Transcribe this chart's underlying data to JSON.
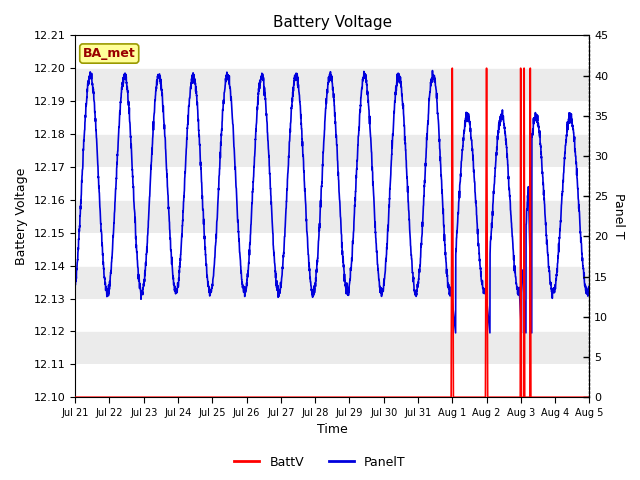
{
  "title": "Battery Voltage",
  "xlabel": "Time",
  "ylabel_left": "Battery Voltage",
  "ylabel_right": "Panel T",
  "ylim_left": [
    12.1,
    12.21
  ],
  "ylim_right": [
    0,
    45
  ],
  "yticks_left": [
    12.1,
    12.11,
    12.12,
    12.13,
    12.14,
    12.15,
    12.16,
    12.17,
    12.18,
    12.19,
    12.2,
    12.21
  ],
  "yticks_right": [
    0,
    5,
    10,
    15,
    20,
    25,
    30,
    35,
    40,
    45
  ],
  "bg_color_light": "#ebebeb",
  "bg_color_dark": "#d8d8d8",
  "grid_color": "#ffffff",
  "annotation_label": "BA_met",
  "annotation_facecolor": "#ffff99",
  "annotation_edgecolor": "#999900",
  "annotation_textcolor": "#990000",
  "batt_color": "#ff0000",
  "panel_color": "#0000dd",
  "xtick_positions": [
    0,
    1,
    2,
    3,
    4,
    5,
    6,
    7,
    8,
    9,
    10,
    11,
    12,
    13,
    14,
    15
  ],
  "xtick_labels": [
    "Jul 21",
    "Jul 22",
    "Jul 23",
    "Jul 24",
    "Jul 25",
    "Jul 26",
    "Jul 27",
    "Jul 28",
    "Jul 29",
    "Jul 30",
    "Jul 31",
    "Aug 1",
    "Aug 2",
    "Aug 3",
    "Aug 4",
    "Aug 5"
  ]
}
